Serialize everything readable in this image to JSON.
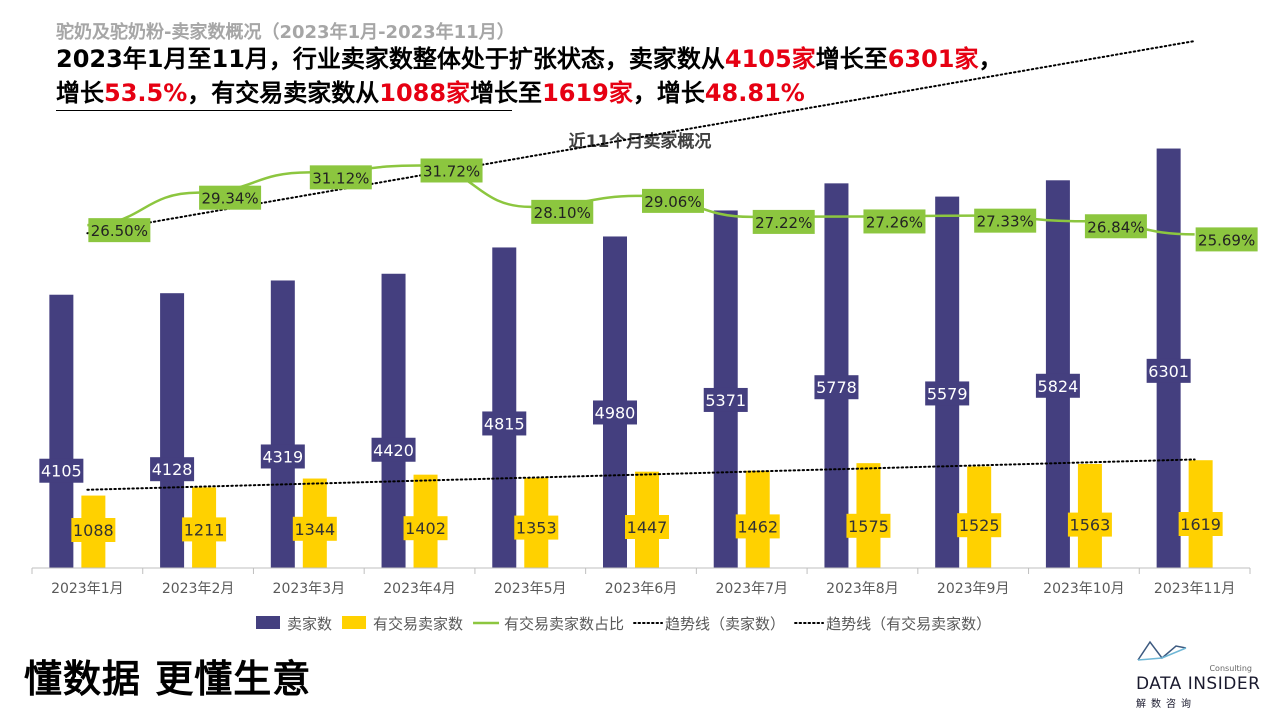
{
  "header": {
    "subtitle": "驼奶及驼奶粉-卖家数概况（2023年1月-2023年11月）",
    "headline_parts": [
      {
        "text": "2023年1月至11月，行业卖家数整体处于扩张状态，卖家数从",
        "highlight": false
      },
      {
        "text": "4105家",
        "highlight": true
      },
      {
        "text": "增长至",
        "highlight": false
      },
      {
        "text": "6301家",
        "highlight": true
      },
      {
        "text": "，",
        "highlight": false
      }
    ],
    "headline_parts_2": [
      {
        "text": "增长",
        "highlight": false
      },
      {
        "text": "53.5%",
        "highlight": true
      },
      {
        "text": "，有交易卖家数从",
        "highlight": false
      },
      {
        "text": "1088家",
        "highlight": true
      },
      {
        "text": "增长至",
        "highlight": false
      },
      {
        "text": "1619家",
        "highlight": true
      },
      {
        "text": "，增长",
        "highlight": false
      },
      {
        "text": "48.81%",
        "highlight": true
      }
    ]
  },
  "chart_data": {
    "type": "bar",
    "title": "近11个月卖家概况",
    "categories": [
      "2023年1月",
      "2023年2月",
      "2023年3月",
      "2023年4月",
      "2023年5月",
      "2023年6月",
      "2023年7月",
      "2023年8月",
      "2023年9月",
      "2023年10月",
      "2023年11月"
    ],
    "series": [
      {
        "name": "卖家数",
        "type": "bar",
        "color": "#443f7f",
        "values": [
          4105,
          4128,
          4319,
          4420,
          4815,
          4980,
          5371,
          5778,
          5579,
          5824,
          6301
        ]
      },
      {
        "name": "有交易卖家数",
        "type": "bar",
        "color": "#ffd100",
        "values": [
          1088,
          1211,
          1344,
          1402,
          1353,
          1447,
          1462,
          1575,
          1525,
          1563,
          1619
        ]
      },
      {
        "name": "有交易卖家数占比",
        "type": "line",
        "color": "#8cc63f",
        "axis": "secondary",
        "values": [
          26.5,
          29.34,
          31.12,
          31.72,
          28.1,
          29.06,
          27.22,
          27.26,
          27.33,
          26.84,
          25.69
        ],
        "labels": [
          "26.50%",
          "29.34%",
          "31.12%",
          "31.72%",
          "28.10%",
          "29.06%",
          "27.22%",
          "27.26%",
          "27.33%",
          "26.84%",
          "25.69%"
        ]
      },
      {
        "name": "趋势线（卖家数）",
        "type": "trendline",
        "of": "卖家数",
        "color": "#000000"
      },
      {
        "name": "趋势线（有交易卖家数）",
        "type": "trendline",
        "of": "有交易卖家数",
        "color": "#000000"
      }
    ],
    "ylim": [
      0,
      7000
    ],
    "y2lim": [
      0,
      42
    ],
    "grid": false,
    "legend": "bottom"
  },
  "footer": {
    "slogan": "懂数据 更懂生意",
    "logo_consulting": "Consulting",
    "logo_name": "DATA INSIDER",
    "logo_cn": "解数咨询"
  }
}
